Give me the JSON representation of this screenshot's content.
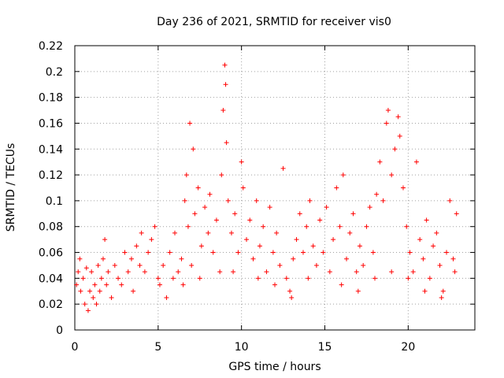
{
  "chart_data": {
    "type": "scatter",
    "title": "Day 236 of 2021, SRMTID for receiver vis0",
    "xlabel": "GPS time / hours",
    "ylabel": "SRMTID / TECUs",
    "xlim": [
      0,
      24
    ],
    "ylim": [
      0,
      0.22
    ],
    "xticks": [
      "0",
      "5",
      "10",
      "15",
      "20"
    ],
    "yticks": [
      "0",
      "0.02",
      "0.04",
      "0.06",
      "0.08",
      "0.1",
      "0.12",
      "0.14",
      "0.16",
      "0.18",
      "0.2",
      "0.22"
    ],
    "grid": true,
    "marker": "+",
    "color": "#ff0000",
    "series": [
      {
        "name": "SRMTID",
        "points": [
          [
            0.1,
            0.035
          ],
          [
            0.2,
            0.045
          ],
          [
            0.3,
            0.055
          ],
          [
            0.35,
            0.03
          ],
          [
            0.5,
            0.04
          ],
          [
            0.6,
            0.02
          ],
          [
            0.7,
            0.048
          ],
          [
            0.8,
            0.015
          ],
          [
            0.9,
            0.03
          ],
          [
            1.0,
            0.045
          ],
          [
            1.1,
            0.025
          ],
          [
            1.2,
            0.035
          ],
          [
            1.3,
            0.02
          ],
          [
            1.4,
            0.05
          ],
          [
            1.5,
            0.03
          ],
          [
            1.6,
            0.04
          ],
          [
            1.7,
            0.055
          ],
          [
            1.8,
            0.07
          ],
          [
            1.9,
            0.035
          ],
          [
            2.0,
            0.045
          ],
          [
            2.2,
            0.025
          ],
          [
            2.4,
            0.05
          ],
          [
            2.6,
            0.04
          ],
          [
            2.8,
            0.035
          ],
          [
            3.0,
            0.06
          ],
          [
            3.2,
            0.045
          ],
          [
            3.4,
            0.055
          ],
          [
            3.5,
            0.03
          ],
          [
            3.7,
            0.065
          ],
          [
            3.9,
            0.05
          ],
          [
            4.0,
            0.075
          ],
          [
            4.2,
            0.045
          ],
          [
            4.4,
            0.06
          ],
          [
            4.6,
            0.07
          ],
          [
            4.8,
            0.08
          ],
          [
            5.0,
            0.04
          ],
          [
            5.1,
            0.035
          ],
          [
            5.3,
            0.05
          ],
          [
            5.5,
            0.025
          ],
          [
            5.7,
            0.06
          ],
          [
            5.9,
            0.04
          ],
          [
            6.0,
            0.075
          ],
          [
            6.2,
            0.045
          ],
          [
            6.4,
            0.055
          ],
          [
            6.6,
            0.1
          ],
          [
            6.7,
            0.12
          ],
          [
            6.8,
            0.08
          ],
          [
            6.9,
            0.16
          ],
          [
            7.0,
            0.05
          ],
          [
            7.1,
            0.14
          ],
          [
            7.2,
            0.09
          ],
          [
            7.4,
            0.11
          ],
          [
            7.6,
            0.065
          ],
          [
            7.8,
            0.095
          ],
          [
            8.0,
            0.075
          ],
          [
            8.1,
            0.105
          ],
          [
            8.3,
            0.06
          ],
          [
            8.5,
            0.085
          ],
          [
            8.7,
            0.045
          ],
          [
            8.8,
            0.12
          ],
          [
            8.9,
            0.17
          ],
          [
            9.0,
            0.205
          ],
          [
            9.05,
            0.19
          ],
          [
            9.1,
            0.145
          ],
          [
            9.2,
            0.1
          ],
          [
            9.4,
            0.075
          ],
          [
            9.6,
            0.09
          ],
          [
            9.8,
            0.06
          ],
          [
            10.0,
            0.13
          ],
          [
            10.1,
            0.11
          ],
          [
            10.3,
            0.07
          ],
          [
            10.5,
            0.085
          ],
          [
            10.7,
            0.055
          ],
          [
            10.9,
            0.1
          ],
          [
            11.1,
            0.065
          ],
          [
            11.3,
            0.08
          ],
          [
            11.5,
            0.045
          ],
          [
            11.7,
            0.095
          ],
          [
            11.9,
            0.06
          ],
          [
            12.1,
            0.075
          ],
          [
            12.3,
            0.05
          ],
          [
            12.5,
            0.125
          ],
          [
            12.7,
            0.04
          ],
          [
            12.9,
            0.03
          ],
          [
            13.1,
            0.055
          ],
          [
            13.3,
            0.07
          ],
          [
            13.5,
            0.09
          ],
          [
            13.7,
            0.06
          ],
          [
            13.9,
            0.08
          ],
          [
            14.1,
            0.1
          ],
          [
            14.3,
            0.065
          ],
          [
            14.5,
            0.05
          ],
          [
            14.7,
            0.085
          ],
          [
            14.9,
            0.06
          ],
          [
            15.1,
            0.095
          ],
          [
            15.3,
            0.045
          ],
          [
            15.5,
            0.07
          ],
          [
            15.7,
            0.11
          ],
          [
            15.9,
            0.08
          ],
          [
            16.1,
            0.12
          ],
          [
            16.3,
            0.055
          ],
          [
            16.5,
            0.075
          ],
          [
            16.7,
            0.09
          ],
          [
            16.9,
            0.045
          ],
          [
            17.1,
            0.065
          ],
          [
            17.3,
            0.05
          ],
          [
            17.5,
            0.08
          ],
          [
            17.7,
            0.095
          ],
          [
            17.9,
            0.06
          ],
          [
            18.1,
            0.105
          ],
          [
            18.3,
            0.13
          ],
          [
            18.5,
            0.1
          ],
          [
            18.7,
            0.16
          ],
          [
            18.8,
            0.17
          ],
          [
            19.0,
            0.12
          ],
          [
            19.2,
            0.14
          ],
          [
            19.4,
            0.165
          ],
          [
            19.5,
            0.15
          ],
          [
            19.7,
            0.11
          ],
          [
            19.9,
            0.08
          ],
          [
            20.1,
            0.06
          ],
          [
            20.3,
            0.045
          ],
          [
            20.5,
            0.13
          ],
          [
            20.7,
            0.07
          ],
          [
            20.9,
            0.055
          ],
          [
            21.1,
            0.085
          ],
          [
            21.3,
            0.04
          ],
          [
            21.5,
            0.065
          ],
          [
            21.7,
            0.075
          ],
          [
            21.9,
            0.05
          ],
          [
            22.1,
            0.03
          ],
          [
            22.3,
            0.06
          ],
          [
            22.5,
            0.1
          ],
          [
            22.7,
            0.055
          ],
          [
            22.9,
            0.09
          ],
          [
            22.8,
            0.045
          ],
          [
            6.5,
            0.035
          ],
          [
            7.5,
            0.04
          ],
          [
            9.5,
            0.045
          ],
          [
            11.0,
            0.04
          ],
          [
            12.0,
            0.035
          ],
          [
            13.0,
            0.025
          ],
          [
            14.0,
            0.04
          ],
          [
            16.0,
            0.035
          ],
          [
            17.0,
            0.03
          ],
          [
            18.0,
            0.04
          ],
          [
            19.0,
            0.045
          ],
          [
            20.0,
            0.04
          ],
          [
            21.0,
            0.03
          ],
          [
            22.0,
            0.025
          ]
        ]
      }
    ]
  }
}
